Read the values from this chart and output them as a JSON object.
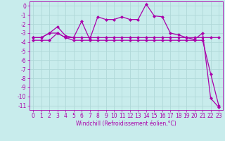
{
  "title": "",
  "xlabel": "Windchill (Refroidissement éolien,°C)",
  "bg_color": "#c8ecec",
  "grid_color": "#b0d8d8",
  "line_color": "#aa00aa",
  "xlim": [
    -0.5,
    23.5
  ],
  "ylim": [
    -11.5,
    0.5
  ],
  "xticks": [
    0,
    1,
    2,
    3,
    4,
    5,
    6,
    7,
    8,
    9,
    10,
    11,
    12,
    13,
    14,
    15,
    16,
    17,
    18,
    19,
    20,
    21,
    22,
    23
  ],
  "yticks": [
    0,
    -1,
    -2,
    -3,
    -4,
    -5,
    -6,
    -7,
    -8,
    -9,
    -10,
    -11
  ],
  "line1_x": [
    0,
    1,
    2,
    3,
    4,
    5,
    6,
    7,
    8,
    9,
    10,
    11,
    12,
    13,
    14,
    15,
    16,
    17,
    18,
    19,
    20,
    21,
    22,
    23
  ],
  "line1_y": [
    -3.5,
    -3.5,
    -3.0,
    -3.0,
    -3.5,
    -3.5,
    -3.5,
    -3.5,
    -3.5,
    -3.5,
    -3.5,
    -3.5,
    -3.5,
    -3.5,
    -3.5,
    -3.5,
    -3.5,
    -3.5,
    -3.5,
    -3.5,
    -3.5,
    -3.5,
    -3.5,
    -3.5
  ],
  "line2_x": [
    0,
    1,
    2,
    3,
    4,
    5,
    6,
    7,
    8,
    9,
    10,
    11,
    12,
    13,
    14,
    15,
    16,
    17,
    18,
    19,
    20,
    21,
    22,
    23
  ],
  "line2_y": [
    -3.8,
    -3.8,
    -3.8,
    -3.0,
    -3.5,
    -3.8,
    -3.8,
    -3.8,
    -3.8,
    -3.8,
    -3.8,
    -3.8,
    -3.8,
    -3.8,
    -3.8,
    -3.8,
    -3.8,
    -3.8,
    -3.8,
    -3.8,
    -3.8,
    -3.8,
    -7.5,
    -11.0
  ],
  "line3_x": [
    0,
    1,
    2,
    3,
    4,
    5,
    6,
    7,
    8,
    9,
    10,
    11,
    12,
    13,
    14,
    15,
    16,
    17,
    18,
    19,
    20,
    21,
    22,
    23
  ],
  "line3_y": [
    -3.5,
    -3.5,
    -3.0,
    -2.3,
    -3.3,
    -3.5,
    -1.7,
    -3.7,
    -1.2,
    -1.5,
    -1.5,
    -1.2,
    -1.5,
    -1.5,
    0.2,
    -1.1,
    -1.2,
    -3.0,
    -3.2,
    -3.5,
    -3.7,
    -3.0,
    -10.2,
    -11.2
  ],
  "figsize": [
    3.2,
    2.0
  ],
  "dpi": 100,
  "tick_fontsize": 5.5,
  "xlabel_fontsize": 5.5,
  "marker_size": 2.5,
  "line_width": 0.9
}
